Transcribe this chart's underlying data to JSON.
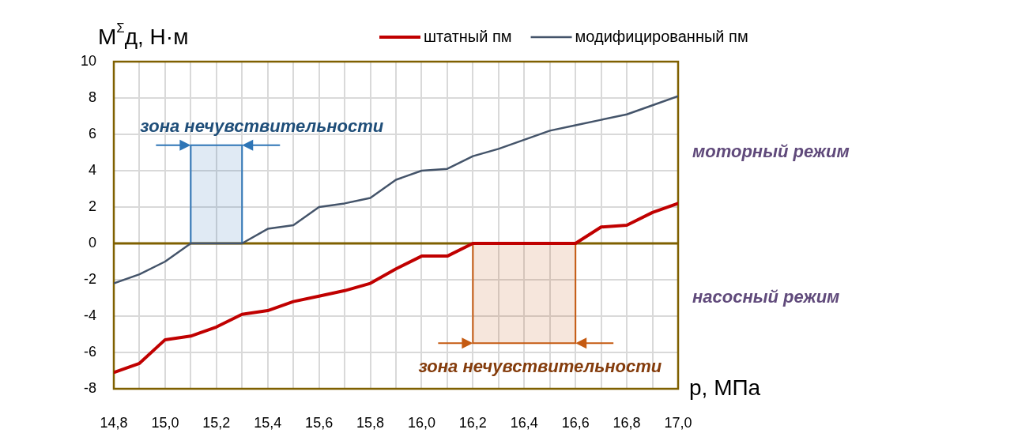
{
  "chart_data": {
    "type": "line",
    "ylabel": "M$^{Σ}$д, Н·м",
    "xlabel": "p, МПа",
    "x": [
      14.8,
      14.9,
      15.0,
      15.1,
      15.2,
      15.3,
      15.4,
      15.5,
      15.6,
      15.7,
      15.8,
      15.9,
      16.0,
      16.1,
      16.2,
      16.3,
      16.4,
      16.5,
      16.6,
      16.7,
      16.8,
      16.9,
      17.0
    ],
    "series": [
      {
        "name": "штатный пм",
        "color": "#c00000",
        "values": [
          -7.1,
          -6.6,
          -5.3,
          -5.1,
          -4.6,
          -3.9,
          -3.7,
          -3.2,
          -2.9,
          -2.6,
          -2.2,
          -1.4,
          -0.7,
          -0.7,
          0,
          0,
          0,
          0,
          0,
          0.9,
          1.0,
          1.7,
          2.2
        ]
      },
      {
        "name": "модифицированный пм",
        "color": "#44546a",
        "values": [
          -2.2,
          -1.7,
          -1.0,
          0,
          0,
          0,
          0.8,
          1.0,
          2.0,
          2.2,
          2.5,
          3.5,
          4.0,
          4.1,
          4.8,
          5.2,
          5.7,
          6.2,
          6.5,
          6.8,
          7.1,
          7.6,
          8.1
        ]
      }
    ],
    "xlim": [
      14.8,
      17.0
    ],
    "xticks": [
      {
        "value": 14.8,
        "label": "14,8"
      },
      {
        "value": 14.9,
        "label": null
      },
      {
        "value": 15.0,
        "label": "15,0"
      },
      {
        "value": 15.1,
        "label": null
      },
      {
        "value": 15.2,
        "label": "15,2"
      },
      {
        "value": 15.3,
        "label": null
      },
      {
        "value": 15.4,
        "label": "15,4"
      },
      {
        "value": 15.5,
        "label": null
      },
      {
        "value": 15.6,
        "label": "15,6"
      },
      {
        "value": 15.7,
        "label": null
      },
      {
        "value": 15.8,
        "label": "15,8"
      },
      {
        "value": 15.9,
        "label": null
      },
      {
        "value": 16.0,
        "label": "16,0"
      },
      {
        "value": 16.1,
        "label": null
      },
      {
        "value": 16.2,
        "label": "16,2"
      },
      {
        "value": 16.3,
        "label": null
      },
      {
        "value": 16.4,
        "label": "16,4"
      },
      {
        "value": 16.5,
        "label": null
      },
      {
        "value": 16.6,
        "label": "16,6"
      },
      {
        "value": 16.7,
        "label": null
      },
      {
        "value": 16.8,
        "label": "16,8"
      },
      {
        "value": 16.9,
        "label": null
      },
      {
        "value": 17.0,
        "label": "17,0"
      }
    ],
    "ylim": [
      -8,
      10
    ],
    "yticks": [
      -8,
      -6,
      -4,
      -2,
      0,
      2,
      4,
      6,
      8,
      10
    ],
    "ref_lines": [
      {
        "axis": "y",
        "value": 0,
        "color": "#7f6000"
      }
    ],
    "bands": [
      {
        "axis": "x",
        "from": 15.1,
        "to": 15.3,
        "label": "зона нечувствительности",
        "color": "#2e75b6"
      },
      {
        "axis": "x",
        "from": 16.2,
        "to": 16.6,
        "label": "зона нечувствительности",
        "color": "#c55a11"
      }
    ],
    "annotations": [
      "моторный режим",
      "насосный режим"
    ],
    "grid": true,
    "legend": "top",
    "marker": "none",
    "line_style": "solid"
  }
}
